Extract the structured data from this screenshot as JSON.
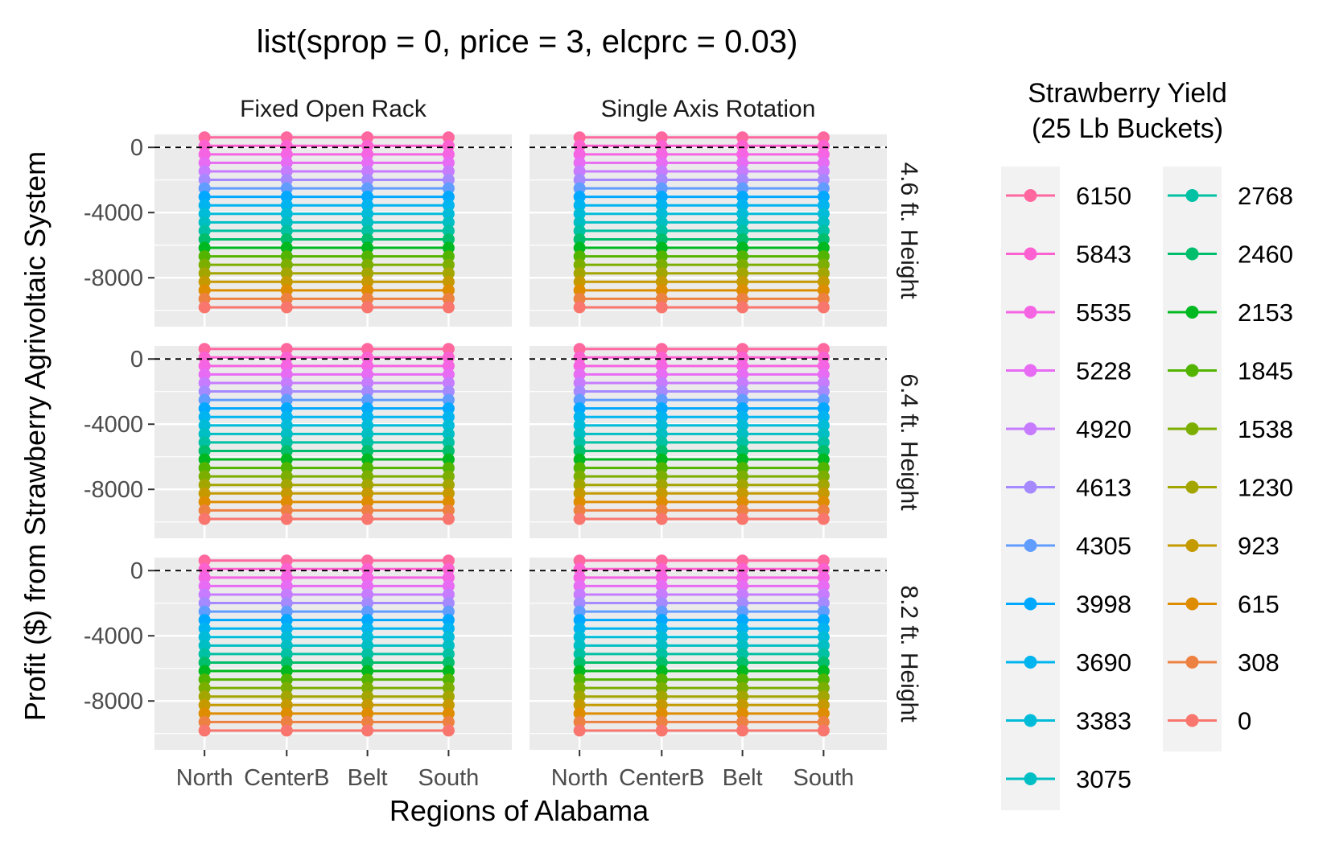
{
  "chart_data": {
    "type": "line",
    "title": "list(sprop = 0, price = 3, elcprc = 0.03)",
    "xlabel": "Regions of Alabama",
    "ylabel": "Profit ($) from Strawberry Agrivoltaic System",
    "categories": [
      "North",
      "CenterB",
      "Belt",
      "South"
    ],
    "facet_cols": [
      "Fixed Open Rack",
      "Single Axis Rotation"
    ],
    "facet_rows": [
      "4.6 ft. Height",
      "6.4 ft. Height",
      "8.2 ft. Height"
    ],
    "y_ticks": [
      0,
      -4000,
      -8000
    ],
    "ylim": [
      -11000,
      800
    ],
    "reference_line": 0,
    "legend": {
      "title_line1": "Strawberry Yield",
      "title_line2": "(25 Lb Buckets)",
      "position": "right"
    },
    "series": [
      {
        "name": "6150",
        "color": "#FF689F",
        "values": [
          617,
          617,
          617,
          617
        ]
      },
      {
        "name": "5843",
        "color": "#FD61D1",
        "values": [
          96,
          96,
          96,
          96
        ]
      },
      {
        "name": "5535",
        "color": "#F564E3",
        "values": [
          -426,
          -426,
          -426,
          -426
        ]
      },
      {
        "name": "5228",
        "color": "#E76BF3",
        "values": [
          -947,
          -947,
          -947,
          -947
        ]
      },
      {
        "name": "4920",
        "color": "#C77CFF",
        "values": [
          -1469,
          -1469,
          -1469,
          -1469
        ]
      },
      {
        "name": "4613",
        "color": "#A58AFF",
        "values": [
          -1990,
          -1990,
          -1990,
          -1990
        ]
      },
      {
        "name": "4305",
        "color": "#619CFF",
        "values": [
          -2512,
          -2512,
          -2512,
          -2512
        ]
      },
      {
        "name": "3998",
        "color": "#00A9FF",
        "values": [
          -3033,
          -3033,
          -3033,
          -3033
        ]
      },
      {
        "name": "3690",
        "color": "#00B4EF",
        "values": [
          -3555,
          -3555,
          -3555,
          -3555
        ]
      },
      {
        "name": "3383",
        "color": "#00BCD8",
        "values": [
          -4076,
          -4076,
          -4076,
          -4076
        ]
      },
      {
        "name": "3075",
        "color": "#00BFC4",
        "values": [
          -4598,
          -4598,
          -4598,
          -4598
        ]
      },
      {
        "name": "2768",
        "color": "#00C1A3",
        "values": [
          -5119,
          -5119,
          -5119,
          -5119
        ]
      },
      {
        "name": "2460",
        "color": "#00BE6C",
        "values": [
          -5641,
          -5641,
          -5641,
          -5641
        ]
      },
      {
        "name": "2153",
        "color": "#00B81F",
        "values": [
          -6162,
          -6162,
          -6162,
          -6162
        ]
      },
      {
        "name": "1845",
        "color": "#53B400",
        "values": [
          -6684,
          -6684,
          -6684,
          -6684
        ]
      },
      {
        "name": "1538",
        "color": "#7CAE00",
        "values": [
          -7205,
          -7205,
          -7205,
          -7205
        ]
      },
      {
        "name": "1230",
        "color": "#A3A500",
        "values": [
          -7727,
          -7727,
          -7727,
          -7727
        ]
      },
      {
        "name": "923",
        "color": "#C49A00",
        "values": [
          -8248,
          -8248,
          -8248,
          -8248
        ]
      },
      {
        "name": "615",
        "color": "#DE8C00",
        "values": [
          -8770,
          -8770,
          -8770,
          -8770
        ]
      },
      {
        "name": "308",
        "color": "#ED8141",
        "values": [
          -9291,
          -9291,
          -9291,
          -9291
        ]
      },
      {
        "name": "0",
        "color": "#F8766D",
        "values": [
          -9813,
          -9813,
          -9813,
          -9813
        ]
      }
    ]
  }
}
